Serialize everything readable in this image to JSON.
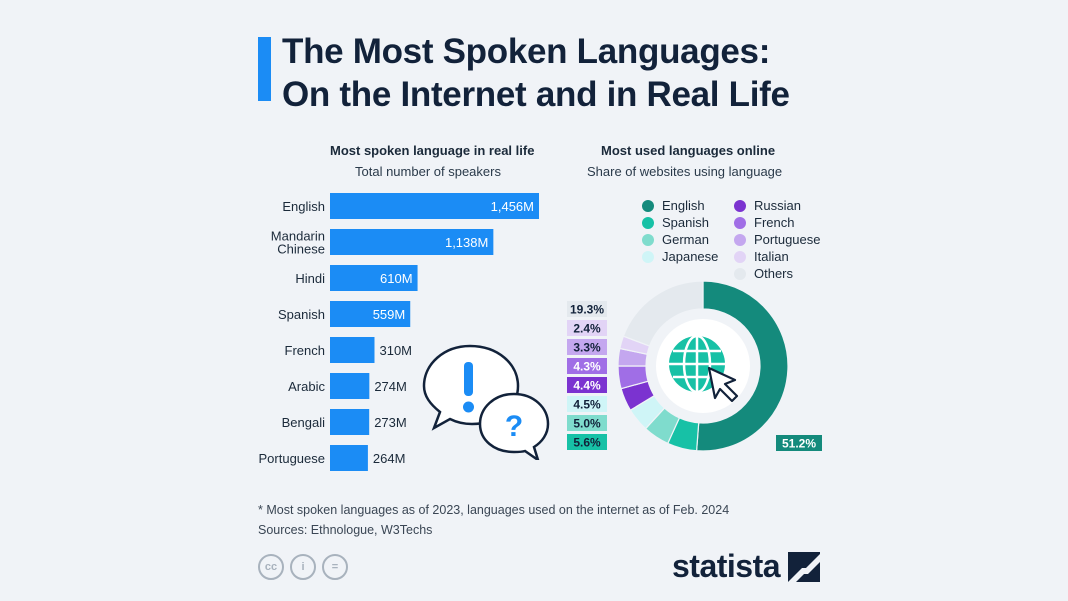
{
  "header": {
    "title_line1": "The Most Spoken Languages:",
    "title_line2": "On the Internet and in Real Life"
  },
  "left_panel": {
    "heading": "Most spoken language in real life",
    "subheading": "Total number of speakers"
  },
  "right_panel": {
    "heading": "Most used languages online",
    "subheading": "Share of websites using language"
  },
  "chart_data": [
    {
      "type": "bar",
      "orientation": "horizontal",
      "title": "Most spoken language in real life",
      "subtitle": "Total number of speakers",
      "categories": [
        "English",
        "Mandarin Chinese",
        "Hindi",
        "Spanish",
        "French",
        "Arabic",
        "Bengali",
        "Portuguese"
      ],
      "category_lines": [
        [
          "English"
        ],
        [
          "Mandarin",
          "Chinese"
        ],
        [
          "Hindi"
        ],
        [
          "Spanish"
        ],
        [
          "French"
        ],
        [
          "Arabic"
        ],
        [
          "Bengali"
        ],
        [
          "Portuguese"
        ]
      ],
      "values": [
        1456,
        1138,
        610,
        559,
        310,
        274,
        273,
        264
      ],
      "value_labels": [
        "1,456M",
        "1,138M",
        "610M",
        "559M",
        "310M",
        "274M",
        "273M",
        "264M"
      ],
      "unit": "M",
      "xlim": [
        0,
        1456
      ],
      "color": "#1b8cf5"
    },
    {
      "type": "pie",
      "donut": true,
      "title": "Most used languages online",
      "subtitle": "Share of websites using language",
      "labels": [
        "English",
        "Spanish",
        "German",
        "Japanese",
        "Russian",
        "French",
        "Portuguese",
        "Italian",
        "Others"
      ],
      "values": [
        51.2,
        5.6,
        5.0,
        4.5,
        4.4,
        4.3,
        3.3,
        2.4,
        19.3
      ],
      "value_labels": [
        "51.2%",
        "5.6%",
        "5.0%",
        "4.5%",
        "4.4%",
        "4.3%",
        "3.3%",
        "2.4%",
        "19.3%"
      ],
      "colors": [
        "#148a7c",
        "#17c1a6",
        "#7fdccd",
        "#cff5f7",
        "#7b33d0",
        "#a06ee6",
        "#c4a7ef",
        "#e2d4f6",
        "#e4e9ee"
      ],
      "label_text_colors": [
        "#ffffff",
        "#12223a",
        "#12223a",
        "#12223a",
        "#ffffff",
        "#ffffff",
        "#12223a",
        "#12223a",
        "#12223a"
      ],
      "legend_placement": "top"
    }
  ],
  "footnote": {
    "line1": "* Most spoken languages as of 2023, languages used on the internet as of Feb. 2024",
    "line2": "Sources: Ethnologue, W3Techs"
  },
  "license_icons": [
    "creative-commons-icon",
    "attribution-icon",
    "no-derivatives-icon"
  ],
  "license_labels": [
    "cc",
    "i",
    "="
  ],
  "brand": {
    "name": "statista"
  },
  "colors": {
    "accent": "#1b8cf5",
    "title": "#12223a",
    "background": "#f0f3f7"
  }
}
